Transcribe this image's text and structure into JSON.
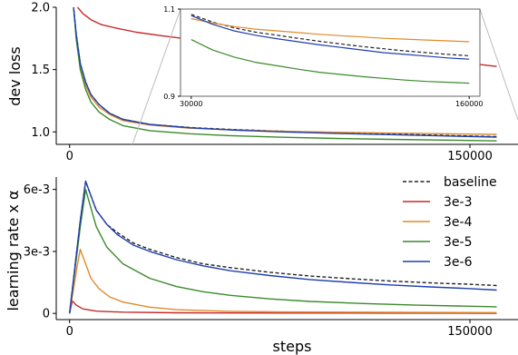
{
  "chart_data": [
    {
      "type": "line",
      "panel": "top",
      "xlabel": "",
      "ylabel": "dev loss",
      "xlim": [
        -5000,
        168000
      ],
      "ylim": [
        0.9,
        2.0
      ],
      "xticks": [
        0,
        150000
      ],
      "xtick_labels": [
        "0",
        "150000"
      ],
      "yticks": [
        1.0,
        1.5,
        2.0
      ],
      "ytick_labels": [
        "1.0",
        "1.5",
        "2.0"
      ],
      "series": [
        {
          "name": "baseline",
          "color": "#222222",
          "dash": true,
          "x": [
            1500,
            2500,
            4000,
            6000,
            8000,
            11000,
            15000,
            20000,
            30000,
            45000,
            60000,
            80000,
            100000,
            120000,
            140000,
            160000
          ],
          "y": [
            2.0,
            1.78,
            1.55,
            1.4,
            1.3,
            1.22,
            1.15,
            1.1,
            1.06,
            1.035,
            1.02,
            1.005,
            0.993,
            0.983,
            0.972,
            0.962
          ]
        },
        {
          "name": "3e-3",
          "color": "#c62828",
          "dash": false,
          "x": [
            3000,
            5000,
            8000,
            12000,
            18000,
            25000,
            35000,
            50000,
            70000,
            90000,
            110000,
            130000,
            150000,
            160000
          ],
          "y": [
            2.0,
            1.95,
            1.9,
            1.86,
            1.83,
            1.8,
            1.77,
            1.73,
            1.68,
            1.64,
            1.6,
            1.575,
            1.55,
            1.525
          ]
        },
        {
          "name": "3e-4",
          "color": "#e08a2a",
          "dash": false,
          "x": [
            1500,
            2500,
            4000,
            6000,
            8000,
            11000,
            15000,
            20000,
            30000,
            45000,
            60000,
            80000,
            100000,
            120000,
            140000,
            160000
          ],
          "y": [
            2.0,
            1.76,
            1.52,
            1.37,
            1.28,
            1.2,
            1.14,
            1.09,
            1.055,
            1.03,
            1.017,
            1.005,
            0.997,
            0.99,
            0.985,
            0.98
          ]
        },
        {
          "name": "3e-5",
          "color": "#3a8a2a",
          "dash": false,
          "x": [
            1500,
            2500,
            4000,
            6000,
            8000,
            11000,
            15000,
            20000,
            30000,
            45000,
            60000,
            80000,
            100000,
            120000,
            140000,
            160000
          ],
          "y": [
            2.0,
            1.74,
            1.5,
            1.34,
            1.24,
            1.16,
            1.1,
            1.05,
            1.01,
            0.985,
            0.97,
            0.957,
            0.947,
            0.94,
            0.934,
            0.928
          ]
        },
        {
          "name": "3e-6",
          "color": "#1f3fae",
          "dash": false,
          "x": [
            1500,
            2500,
            4000,
            6000,
            8000,
            11000,
            15000,
            20000,
            30000,
            45000,
            60000,
            80000,
            100000,
            120000,
            140000,
            160000
          ],
          "y": [
            2.0,
            1.78,
            1.55,
            1.4,
            1.3,
            1.22,
            1.15,
            1.1,
            1.06,
            1.033,
            1.016,
            1.0,
            0.988,
            0.978,
            0.968,
            0.958
          ]
        }
      ]
    },
    {
      "type": "line",
      "panel": "inset",
      "xlim": [
        25000,
        165000
      ],
      "ylim": [
        0.9,
        1.1
      ],
      "xticks": [
        30000,
        160000
      ],
      "xtick_labels": [
        "30000",
        "160000"
      ],
      "yticks": [
        0.9,
        1.1
      ],
      "ytick_labels": [
        "0.9",
        "1.1"
      ],
      "series": [
        {
          "name": "baseline",
          "color": "#222222",
          "dash": true,
          "x": [
            30000,
            40000,
            50000,
            60000,
            70000,
            80000,
            90000,
            100000,
            110000,
            120000,
            130000,
            140000,
            150000,
            160000
          ],
          "y": [
            1.088,
            1.07,
            1.057,
            1.047,
            1.04,
            1.033,
            1.026,
            1.02,
            1.014,
            1.009,
            1.004,
            1.0,
            0.996,
            0.993
          ]
        },
        {
          "name": "3e-4",
          "color": "#e08a2a",
          "dash": false,
          "x": [
            30000,
            40000,
            50000,
            60000,
            70000,
            80000,
            90000,
            100000,
            110000,
            120000,
            130000,
            140000,
            150000,
            160000
          ],
          "y": [
            1.078,
            1.068,
            1.06,
            1.054,
            1.05,
            1.046,
            1.042,
            1.039,
            1.036,
            1.033,
            1.031,
            1.029,
            1.027,
            1.025
          ]
        },
        {
          "name": "3e-5",
          "color": "#3a8a2a",
          "dash": false,
          "x": [
            30000,
            40000,
            50000,
            60000,
            70000,
            80000,
            90000,
            100000,
            110000,
            120000,
            130000,
            140000,
            150000,
            160000
          ],
          "y": [
            1.03,
            1.006,
            0.99,
            0.978,
            0.97,
            0.962,
            0.955,
            0.95,
            0.945,
            0.941,
            0.937,
            0.934,
            0.932,
            0.93
          ]
        },
        {
          "name": "3e-6",
          "color": "#1f3fae",
          "dash": false,
          "x": [
            30000,
            40000,
            50000,
            60000,
            70000,
            80000,
            90000,
            100000,
            110000,
            120000,
            130000,
            140000,
            150000,
            160000
          ],
          "y": [
            1.085,
            1.065,
            1.05,
            1.04,
            1.032,
            1.025,
            1.018,
            1.012,
            1.006,
            1.0,
            0.996,
            0.992,
            0.988,
            0.985
          ]
        }
      ]
    },
    {
      "type": "line",
      "panel": "bottom",
      "xlabel": "steps",
      "ylabel": "learning rate x α",
      "xlim": [
        -5000,
        168000
      ],
      "ylim": [
        -0.0003,
        0.0066
      ],
      "xticks": [
        0,
        150000
      ],
      "xtick_labels": [
        "0",
        "150000"
      ],
      "yticks": [
        0,
        0.003,
        0.006
      ],
      "ytick_labels": [
        "0",
        "3e-3",
        "6e-3"
      ],
      "legend": "top-right",
      "series": [
        {
          "name": "baseline",
          "color": "#222222",
          "dash": true,
          "x": [
            0,
            4000,
            6000,
            8000,
            10000,
            14000,
            18000,
            24000,
            30000,
            40000,
            50000,
            60000,
            75000,
            90000,
            105000,
            120000,
            135000,
            150000,
            160000
          ],
          "y": [
            0,
            0.0045,
            0.0064,
            0.0057,
            0.005,
            0.0043,
            0.0039,
            0.0034,
            0.0031,
            0.0027,
            0.0024,
            0.00222,
            0.00199,
            0.00181,
            0.00168,
            0.00157,
            0.00148,
            0.00141,
            0.00135
          ]
        },
        {
          "name": "3e-3",
          "color": "#c62828",
          "dash": false,
          "x": [
            0,
            1000,
            2500,
            5000,
            10000,
            20000,
            40000,
            80000,
            120000,
            160000
          ],
          "y": [
            0,
            0.0006,
            0.0004,
            0.00022,
            0.00011,
            6e-05,
            3e-05,
            1.5e-05,
            1e-05,
            8e-06
          ]
        },
        {
          "name": "3e-4",
          "color": "#e08a2a",
          "dash": false,
          "x": [
            0,
            3000,
            4000,
            6000,
            8000,
            11000,
            15000,
            20000,
            30000,
            40000,
            60000,
            80000,
            120000,
            160000
          ],
          "y": [
            0,
            0.0024,
            0.0031,
            0.0024,
            0.0017,
            0.0012,
            0.0008,
            0.00055,
            0.0003,
            0.00018,
            0.0001,
            7e-05,
            5e-05,
            4e-05
          ]
        },
        {
          "name": "3e-5",
          "color": "#3a8a2a",
          "dash": false,
          "x": [
            0,
            4000,
            6000,
            8000,
            10000,
            14000,
            20000,
            30000,
            40000,
            50000,
            60000,
            75000,
            90000,
            110000,
            130000,
            160000
          ],
          "y": [
            0,
            0.0042,
            0.006,
            0.0051,
            0.0042,
            0.0032,
            0.0024,
            0.0017,
            0.0013,
            0.00105,
            0.00088,
            0.0007,
            0.00058,
            0.00048,
            0.0004,
            0.00032
          ]
        },
        {
          "name": "3e-6",
          "color": "#1f3fae",
          "dash": false,
          "x": [
            0,
            4000,
            6000,
            8000,
            10000,
            14000,
            18000,
            24000,
            30000,
            40000,
            50000,
            60000,
            75000,
            90000,
            105000,
            120000,
            135000,
            150000,
            160000
          ],
          "y": [
            0,
            0.0045,
            0.0064,
            0.0057,
            0.005,
            0.0043,
            0.0038,
            0.0033,
            0.003,
            0.0026,
            0.0023,
            0.00207,
            0.00183,
            0.00164,
            0.0015,
            0.00138,
            0.00128,
            0.0012,
            0.00113
          ]
        }
      ]
    }
  ]
}
